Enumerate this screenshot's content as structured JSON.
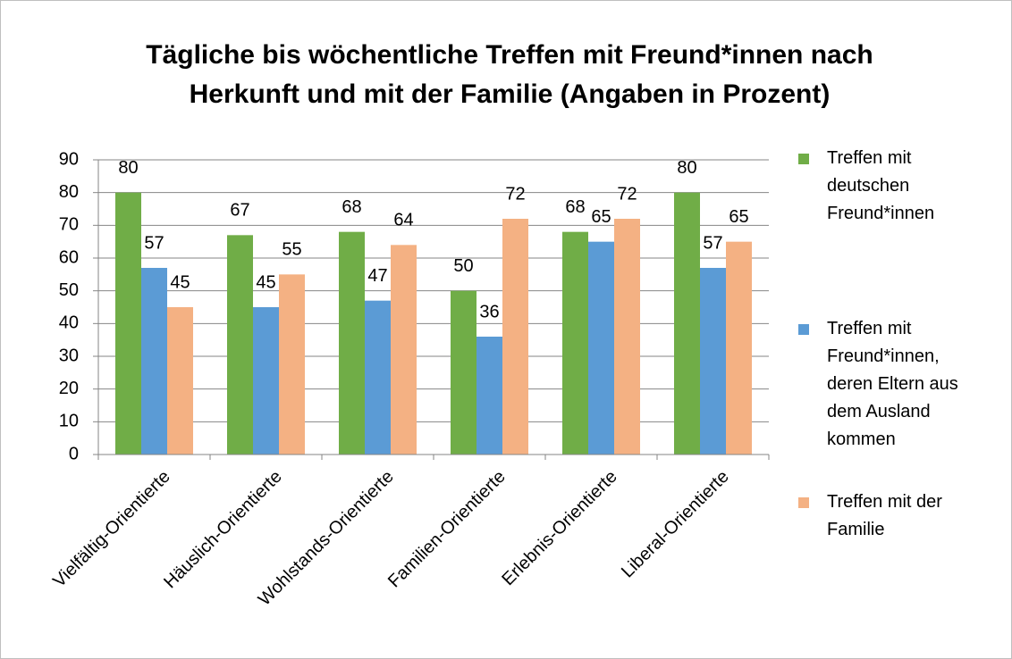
{
  "chart_data": {
    "type": "bar",
    "title": "Tägliche bis wöchentliche Treffen mit Freund*innen nach Herkunft und mit der Familie (Angaben in Prozent)",
    "categories": [
      "Vielfältig-Orientierte",
      "Häuslich-Orientierte",
      "Wohlstands-Orientierte",
      "Familien-Orientierte",
      "Erlebnis-Orientierte",
      "Liberal-Orientierte"
    ],
    "series": [
      {
        "name": "Treffen mit deutschen Freund*innen",
        "color": "#70ad47",
        "values": [
          80,
          67,
          68,
          50,
          68,
          80
        ]
      },
      {
        "name": "Treffen mit Freund*innen, deren Eltern aus dem Ausland kommen",
        "color": "#5b9bd5",
        "values": [
          57,
          45,
          47,
          36,
          65,
          57
        ]
      },
      {
        "name": "Treffen mit der Familie",
        "color": "#f4b183",
        "values": [
          45,
          55,
          64,
          72,
          72,
          65
        ]
      }
    ],
    "ylim": [
      0,
      90
    ],
    "yticks": [
      0,
      10,
      20,
      30,
      40,
      50,
      60,
      70,
      80,
      90
    ],
    "grid": true,
    "legend": "right"
  }
}
